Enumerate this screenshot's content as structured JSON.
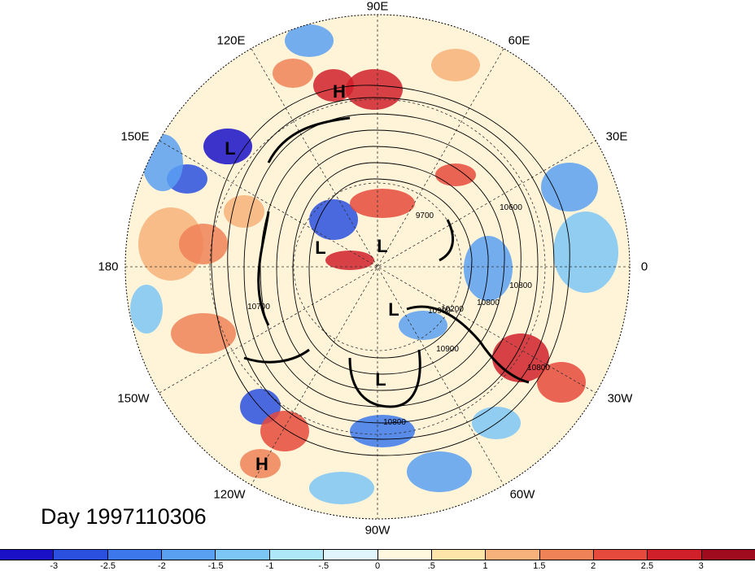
{
  "map": {
    "projection": "north-polar-stereographic",
    "lon_labels": {
      "lon_90e": "90E",
      "lon_60e": "60E",
      "lon_30e": "30E",
      "lon_0": "0",
      "lon_30w": "30W",
      "lon_60w": "60W",
      "lon_90w": "90W",
      "lon_120w": "120W",
      "lon_150w": "150W",
      "lon_180": "180",
      "lon_150e": "150E",
      "lon_120e": "120E"
    },
    "pressure_centers": [
      {
        "label": "H"
      },
      {
        "label": "L"
      },
      {
        "label": "L"
      },
      {
        "label": "L"
      },
      {
        "label": "L"
      },
      {
        "label": "L"
      },
      {
        "label": "H"
      }
    ],
    "contour_labels": [
      "10600",
      "9700",
      "10800",
      "10700",
      "10900",
      "10800",
      "10800",
      "10900",
      "10800",
      "10200"
    ],
    "colors": {
      "land_outline": "#111111",
      "contour": "#000000"
    }
  },
  "day_label": "Day 1997110306",
  "colorbar": {
    "colors": [
      "#1a10c8",
      "#2b50e0",
      "#3c78ec",
      "#5aa0f2",
      "#7cc6f6",
      "#aee8f8",
      "#e0f6fc",
      "#fff8de",
      "#fde4a8",
      "#f6b27a",
      "#f08258",
      "#e64a3c",
      "#d0202a",
      "#a00c1e"
    ],
    "tick_labels": [
      "-3",
      "-2.5",
      "-2",
      "-1.5",
      "-1",
      "-.5",
      "0",
      ".5",
      "1",
      "1.5",
      "2",
      "2.5",
      "3"
    ]
  }
}
